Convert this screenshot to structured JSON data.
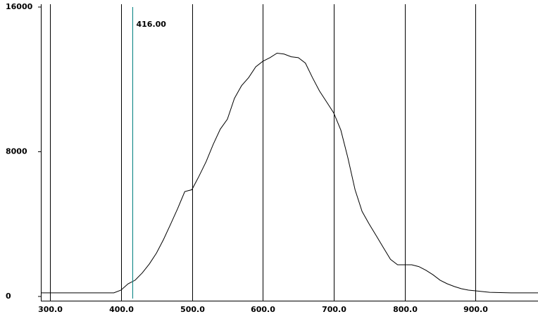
{
  "chart_data": {
    "type": "line",
    "x": [
      287,
      380,
      390,
      400,
      410,
      420,
      430,
      440,
      450,
      460,
      470,
      480,
      490,
      500,
      510,
      520,
      530,
      540,
      550,
      560,
      570,
      580,
      590,
      600,
      610,
      620,
      630,
      640,
      650,
      660,
      670,
      680,
      690,
      700,
      710,
      720,
      730,
      740,
      750,
      760,
      770,
      780,
      790,
      800,
      810,
      820,
      830,
      840,
      850,
      860,
      870,
      880,
      890,
      900,
      920,
      950,
      988
    ],
    "series": [
      {
        "color": "#000000",
        "values": [
          200,
          200,
          200,
          350,
          700,
          900,
          1300,
          1800,
          2400,
          3150,
          4000,
          4870,
          5800,
          5900,
          6650,
          7450,
          8400,
          9250,
          9800,
          10950,
          11650,
          12100,
          12700,
          13000,
          13200,
          13450,
          13400,
          13250,
          13200,
          12900,
          12100,
          11350,
          10750,
          10150,
          9200,
          7650,
          5900,
          4700,
          4000,
          3350,
          2700,
          2050,
          1750,
          1750,
          1750,
          1650,
          1450,
          1200,
          900,
          700,
          550,
          430,
          350,
          310,
          230,
          200,
          200
        ]
      }
    ],
    "xlim": [
      287,
      988
    ],
    "ylim": [
      0,
      16000
    ],
    "xticks": [
      {
        "value": 300,
        "label": "300.0"
      },
      {
        "value": 400,
        "label": "400.0"
      },
      {
        "value": 500,
        "label": "500.0"
      },
      {
        "value": 600,
        "label": "600.0"
      },
      {
        "value": 700,
        "label": "700.0"
      },
      {
        "value": 800,
        "label": "800.0"
      },
      {
        "value": 900,
        "label": "900.0"
      }
    ],
    "yticks": [
      0,
      8000,
      16000
    ],
    "grid": true,
    "cursor": {
      "value": 416,
      "label": "416.00",
      "color": "#008080"
    }
  }
}
